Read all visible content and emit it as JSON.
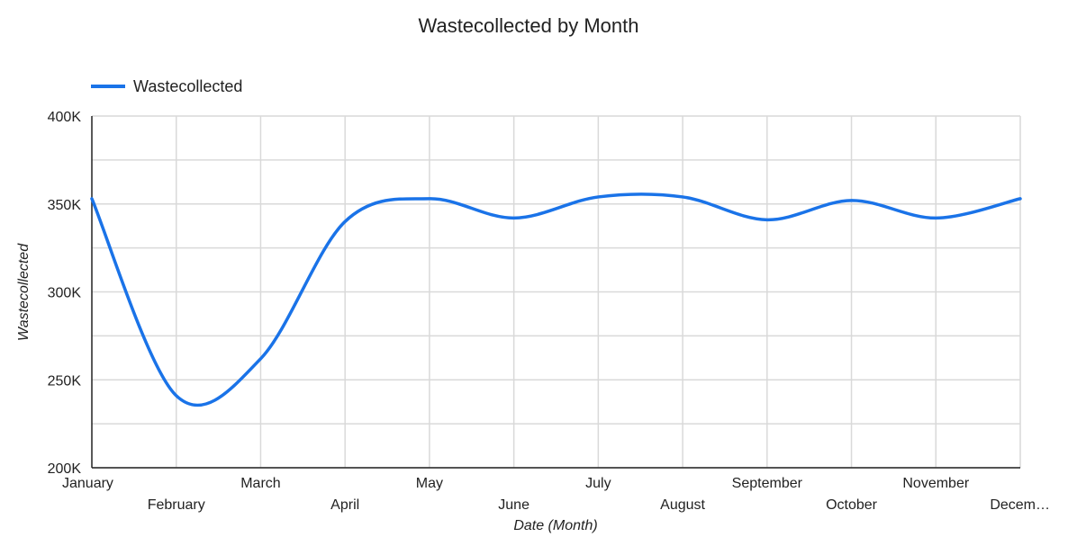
{
  "chart_data": {
    "type": "line",
    "title": "Wastecollected by Month",
    "xlabel": "Date (Month)",
    "ylabel": "Wastecollected",
    "legend_position": "top-left",
    "grid": true,
    "ylim": [
      200000,
      400000
    ],
    "yticks": [
      200000,
      250000,
      300000,
      350000,
      400000
    ],
    "ytick_labels": [
      "200K",
      "250K",
      "300K",
      "350K",
      "400K"
    ],
    "categories": [
      "January",
      "February",
      "March",
      "April",
      "May",
      "June",
      "July",
      "August",
      "September",
      "October",
      "November",
      "Decem…"
    ],
    "series": [
      {
        "name": "Wastecollected",
        "color": "#1a73e8",
        "values": [
          353000,
          241000,
          262000,
          340000,
          353000,
          342000,
          354000,
          354000,
          341000,
          352000,
          342000,
          353000
        ]
      }
    ]
  }
}
